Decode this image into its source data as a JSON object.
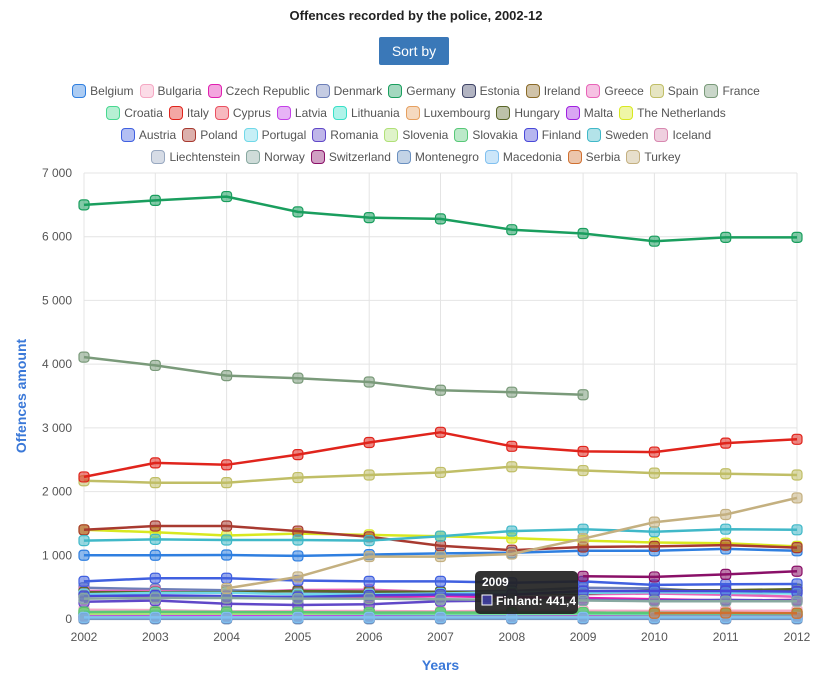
{
  "title": "Offences recorded by the police, 2002-12",
  "sort_button": "Sort by",
  "chart_data": {
    "type": "line",
    "title": "Offences recorded by the police, 2002-12",
    "xlabel": "Years",
    "ylabel": "Offences amount",
    "x": [
      "2002",
      "2003",
      "2004",
      "2005",
      "2006",
      "2007",
      "2008",
      "2009",
      "2010",
      "2011",
      "2012"
    ],
    "ylim": [
      0,
      7000
    ],
    "yticks": [
      "0",
      "1 000",
      "2 000",
      "3 000",
      "4 000",
      "5 000",
      "6 000",
      "7 000"
    ],
    "grid": true,
    "legend_position": "top",
    "series": [
      {
        "name": "Belgium",
        "color": "#2f7fe0",
        "values": [
          1000,
          1000,
          1005,
          990,
          1010,
          1030,
          1040,
          1070,
          1070,
          1100,
          1070
        ]
      },
      {
        "name": "Bulgaria",
        "color": "#f5a8c4",
        "values": [
          145,
          140,
          120,
          125,
          125,
          120,
          130,
          130,
          125,
          130,
          130
        ]
      },
      {
        "name": "Czech Republic",
        "color": "#e020b0",
        "values": [
          370,
          360,
          350,
          345,
          340,
          360,
          340,
          330,
          310,
          290,
          300
        ]
      },
      {
        "name": "Denmark",
        "color": "#6d7fb8",
        "values": [
          490,
          470,
          450,
          430,
          425,
          430,
          440,
          490,
          480,
          420,
          430
        ]
      },
      {
        "name": "Germany",
        "color": "#1a9e5e",
        "values": [
          6500,
          6570,
          6630,
          6390,
          6300,
          6280,
          6110,
          6050,
          5930,
          5990,
          5990
        ]
      },
      {
        "name": "Estonia",
        "color": "#3f4466",
        "values": [
          55,
          50,
          50,
          50,
          50,
          50,
          50,
          48,
          48,
          42,
          40
        ]
      },
      {
        "name": "Ireland",
        "color": "#8a6a28",
        "values": [
          100,
          105,
          100,
          100,
          100,
          100,
          100,
          100,
          95,
          90,
          90
        ]
      },
      {
        "name": "Greece",
        "color": "#e864b8",
        "values": [
          440,
          440,
          410,
          455,
          460,
          420,
          420,
          390,
          400,
          380,
          350
        ]
      },
      {
        "name": "Spain",
        "color": "#c0be66",
        "values": [
          2170,
          2140,
          2140,
          2220,
          2260,
          2300,
          2390,
          2330,
          2290,
          2280,
          2260
        ]
      },
      {
        "name": "France",
        "color": "#7a9a7a",
        "values": [
          4110,
          3980,
          3820,
          3780,
          3720,
          3590,
          3560,
          3520,
          null,
          null,
          null
        ]
      },
      {
        "name": "Croatia",
        "color": "#48d890",
        "values": [
          70,
          70,
          70,
          70,
          70,
          70,
          70,
          70,
          70,
          70,
          70
        ]
      },
      {
        "name": "Italy",
        "color": "#e0241c",
        "values": [
          2230,
          2450,
          2420,
          2580,
          2770,
          2930,
          2710,
          2630,
          2620,
          2760,
          2820
        ]
      },
      {
        "name": "Cyprus",
        "color": "#ea5060",
        "values": [
          8,
          8,
          8,
          8,
          8,
          8,
          8,
          8,
          8,
          8,
          8
        ]
      },
      {
        "name": "Latvia",
        "color": "#c440e8",
        "values": [
          65,
          65,
          60,
          55,
          55,
          55,
          55,
          55,
          55,
          50,
          50
        ]
      },
      {
        "name": "Lithuania",
        "color": "#38e0c8",
        "values": [
          80,
          80,
          85,
          80,
          80,
          75,
          75,
          80,
          75,
          75,
          75
        ]
      },
      {
        "name": "Luxembourg",
        "color": "#e6a060",
        "values": [
          25,
          25,
          25,
          25,
          25,
          28,
          28,
          30,
          30,
          30,
          30
        ]
      },
      {
        "name": "Hungary",
        "color": "#5a6628",
        "values": [
          420,
          420,
          420,
          440,
          430,
          425,
          410,
          395,
          450,
          450,
          470
        ]
      },
      {
        "name": "Malta",
        "color": "#a020e0",
        "values": [
          17,
          17,
          17,
          17,
          17,
          17,
          17,
          17,
          17,
          17,
          17
        ]
      },
      {
        "name": "The Netherlands",
        "color": "#d8e820",
        "values": [
          1400,
          1360,
          1310,
          1340,
          1320,
          1300,
          1270,
          1230,
          1200,
          1190,
          1140
        ]
      },
      {
        "name": "Austria",
        "color": "#4060e0",
        "values": [
          590,
          640,
          640,
          605,
          590,
          590,
          570,
          590,
          535,
          545,
          550
        ]
      },
      {
        "name": "Poland",
        "color": "#a83a30",
        "values": [
          1400,
          1460,
          1460,
          1380,
          1290,
          1150,
          1080,
          1130,
          1140,
          1160,
          1120
        ]
      },
      {
        "name": "Portugal",
        "color": "#70d8e8",
        "values": [
          390,
          410,
          410,
          390,
          390,
          400,
          420,
          410,
          420,
          410,
          400
        ]
      },
      {
        "name": "Romania",
        "color": "#6048c8",
        "values": [
          270,
          290,
          240,
          220,
          230,
          280,
          290,
          300,
          290,
          300,
          290
        ]
      },
      {
        "name": "Slovenia",
        "color": "#b0e078",
        "values": [
          80,
          85,
          85,
          85,
          90,
          90,
          90,
          90,
          90,
          90,
          90
        ]
      },
      {
        "name": "Slovakia",
        "color": "#58c878",
        "values": [
          110,
          115,
          110,
          105,
          100,
          100,
          100,
          100,
          95,
          90,
          90
        ]
      },
      {
        "name": "Finland",
        "color": "#4848d8",
        "values": [
          360,
          370,
          360,
          345,
          370,
          385,
          380,
          440,
          440,
          440,
          430
        ]
      },
      {
        "name": "Sweden",
        "color": "#40b8c8",
        "values": [
          1230,
          1250,
          1240,
          1240,
          1230,
          1300,
          1380,
          1410,
          1370,
          1410,
          1400
        ]
      },
      {
        "name": "Iceland",
        "color": "#d888b0",
        "values": [
          15,
          15,
          15,
          15,
          15,
          15,
          15,
          15,
          15,
          15,
          15
        ]
      },
      {
        "name": "Liechtenstein",
        "color": "#98a8c0",
        "values": [
          2,
          2,
          2,
          2,
          2,
          2,
          2,
          2,
          2,
          2,
          2
        ]
      },
      {
        "name": "Norway",
        "color": "#88a8a0",
        "values": [
          320,
          330,
          330,
          320,
          320,
          310,
          300,
          290,
          280,
          280,
          280
        ]
      },
      {
        "name": "Switzerland",
        "color": "#8a1068",
        "values": [
          null,
          null,
          null,
          null,
          null,
          null,
          null,
          670,
          660,
          700,
          750
        ]
      },
      {
        "name": "Montenegro",
        "color": "#6a90c0",
        "values": [
          8,
          8,
          8,
          8,
          8,
          8,
          8,
          8,
          8,
          8,
          8
        ]
      },
      {
        "name": "Macedonia",
        "color": "#80c0f0",
        "values": [
          25,
          25,
          25,
          25,
          25,
          25,
          25,
          25,
          25,
          25,
          25
        ]
      },
      {
        "name": "Serbia",
        "color": "#d07030",
        "values": [
          null,
          null,
          null,
          null,
          null,
          null,
          null,
          null,
          90,
          95,
          90
        ]
      },
      {
        "name": "Turkey",
        "color": "#c4b080",
        "values": [
          null,
          null,
          480,
          660,
          980,
          980,
          1020,
          1260,
          1520,
          1640,
          1900
        ]
      }
    ]
  },
  "tooltip": {
    "year": "2009",
    "label": "Finland: 441,4"
  }
}
